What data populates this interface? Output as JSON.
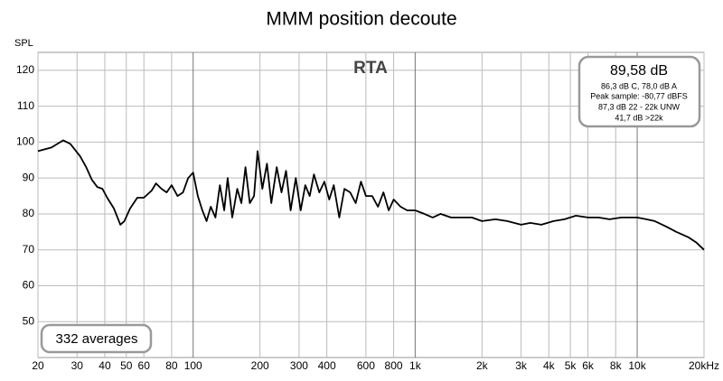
{
  "chart_data": {
    "type": "line",
    "title": "MMM position decoute",
    "y_label": "SPL",
    "annotation": "RTA",
    "info_box": {
      "headline": "89,58 dB",
      "lines": [
        "86,3 dB C, 78,0 dB A",
        "Peak sample: -80,77 dBFS",
        "87,3 dB 22 - 22k UNW",
        "41,7 dB >22k"
      ]
    },
    "averages_label": "332 averages",
    "x_scale": "log",
    "grid": true,
    "xlim": [
      20,
      20000
    ],
    "ylim": [
      40,
      125
    ],
    "xticks": [
      20,
      30,
      40,
      50,
      60,
      80,
      100,
      200,
      300,
      400,
      600,
      800,
      {
        "value": 1000,
        "label": "1k"
      },
      {
        "value": 2000,
        "label": "2k"
      },
      {
        "value": 3000,
        "label": "3k"
      },
      {
        "value": 4000,
        "label": "4k"
      },
      {
        "value": 5000,
        "label": "5k"
      },
      {
        "value": 6000,
        "label": "6k"
      },
      {
        "value": 8000,
        "label": "8k"
      },
      {
        "value": 10000,
        "label": "10k"
      },
      {
        "value": 20000,
        "label": "20kHz"
      }
    ],
    "yticks": [
      50,
      60,
      70,
      80,
      90,
      100,
      110,
      120
    ],
    "x": [
      20,
      23,
      26,
      28,
      31,
      33,
      35,
      37,
      39,
      41,
      44,
      47,
      49,
      52,
      56,
      60,
      65,
      68,
      72,
      76,
      80,
      85,
      90,
      95,
      100,
      105,
      110,
      115,
      120,
      126,
      132,
      138,
      143,
      150,
      158,
      165,
      172,
      180,
      188,
      195,
      205,
      215,
      225,
      238,
      250,
      262,
      275,
      290,
      305,
      320,
      335,
      350,
      370,
      390,
      410,
      430,
      455,
      480,
      510,
      540,
      570,
      600,
      640,
      680,
      720,
      760,
      800,
      860,
      920,
      1000,
      1100,
      1200,
      1300,
      1450,
      1600,
      1800,
      2000,
      2300,
      2600,
      3000,
      3300,
      3700,
      4200,
      4700,
      5300,
      6000,
      6700,
      7500,
      8500,
      10000,
      11000,
      12000,
      13500,
      15000,
      17000,
      18500,
      20000
    ],
    "series": [
      {
        "name": "RTA",
        "color": "#000000",
        "values": [
          97.5,
          98.5,
          100.5,
          99.5,
          96,
          93,
          89.5,
          87.5,
          87,
          84.5,
          81.5,
          77,
          78,
          81.5,
          84.5,
          84.5,
          86.5,
          88.5,
          87,
          86,
          88,
          85,
          86,
          90,
          91.5,
          85,
          81,
          78,
          82,
          79,
          88,
          81,
          90,
          79,
          87,
          83,
          93,
          83,
          85,
          97.5,
          87,
          94,
          83,
          93,
          86,
          92,
          81,
          90,
          81,
          88,
          85,
          91,
          86,
          89,
          84,
          88,
          79,
          87,
          86,
          83,
          89,
          85,
          85,
          82,
          86,
          81,
          84,
          82,
          81,
          81,
          80,
          79,
          80,
          79,
          79,
          79,
          78,
          78.5,
          78,
          77,
          77.5,
          77,
          78,
          78.5,
          79.5,
          79,
          79,
          78.5,
          79,
          79,
          78.5,
          78,
          76.5,
          75,
          73.5,
          72,
          70
        ]
      }
    ]
  }
}
